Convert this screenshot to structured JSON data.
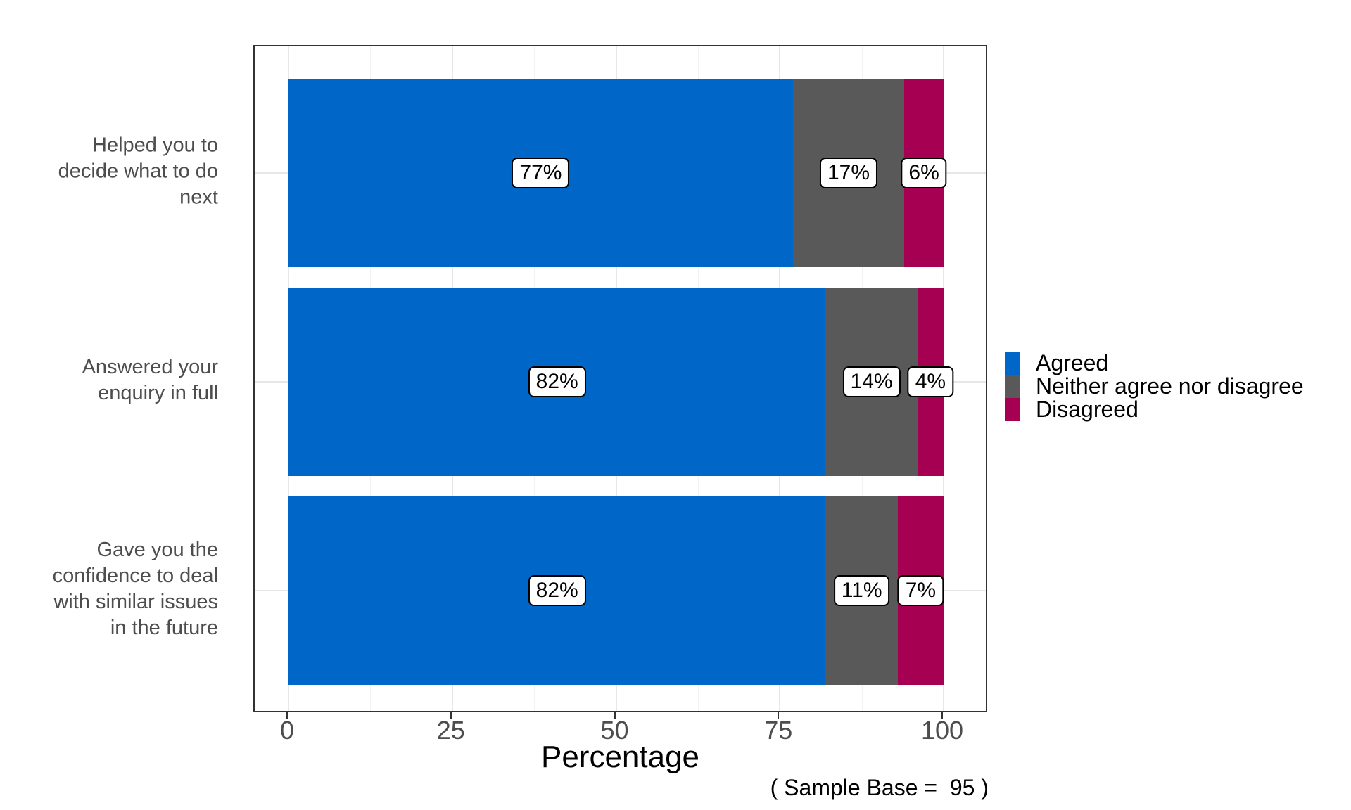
{
  "chart_data": {
    "type": "bar",
    "orientation": "horizontal-stacked",
    "xlabel": "Percentage",
    "ylabel": "",
    "xlim": [
      0,
      100
    ],
    "x_ticks": [
      0,
      25,
      50,
      75,
      100
    ],
    "x_tick_labels": [
      "0",
      "25",
      "50",
      "75",
      "100"
    ],
    "x_minor_ticks": [
      12.5,
      37.5,
      62.5,
      87.5
    ],
    "grid": true,
    "legend_position": "right",
    "categories": [
      "Helped you to decide what to do next",
      "Answered your enquiry in full",
      "Gave you the confidence to deal with similar issues in the future"
    ],
    "category_label_lines": [
      [
        "Helped you to",
        "decide what to do",
        "next"
      ],
      [
        "Answered your",
        "enquiry in full"
      ],
      [
        "Gave you the",
        "confidence to deal",
        "with similar issues",
        "in the future"
      ]
    ],
    "series": [
      {
        "name": "Agreed",
        "color": "#0066C8",
        "values": [
          77,
          82,
          82
        ],
        "labels": [
          "77%",
          "82%",
          "82%"
        ]
      },
      {
        "name": "Neither agree nor disagree",
        "color": "#595959",
        "values": [
          17,
          14,
          11
        ],
        "labels": [
          "17%",
          "14%",
          "11%"
        ]
      },
      {
        "name": "Disagreed",
        "color": "#A50052",
        "values": [
          6,
          4,
          7
        ],
        "labels": [
          "6%",
          "4%",
          "7%"
        ]
      }
    ],
    "caption": "( Sample Base =  95 )"
  },
  "colors": {
    "agreed": "#0066C8",
    "neither": "#595959",
    "disagreed": "#A50052",
    "panel_border": "#333333",
    "grid_major": "#E7E7E7",
    "grid_minor": "#F2F2F2",
    "axis_text": "#4D4D4D"
  }
}
